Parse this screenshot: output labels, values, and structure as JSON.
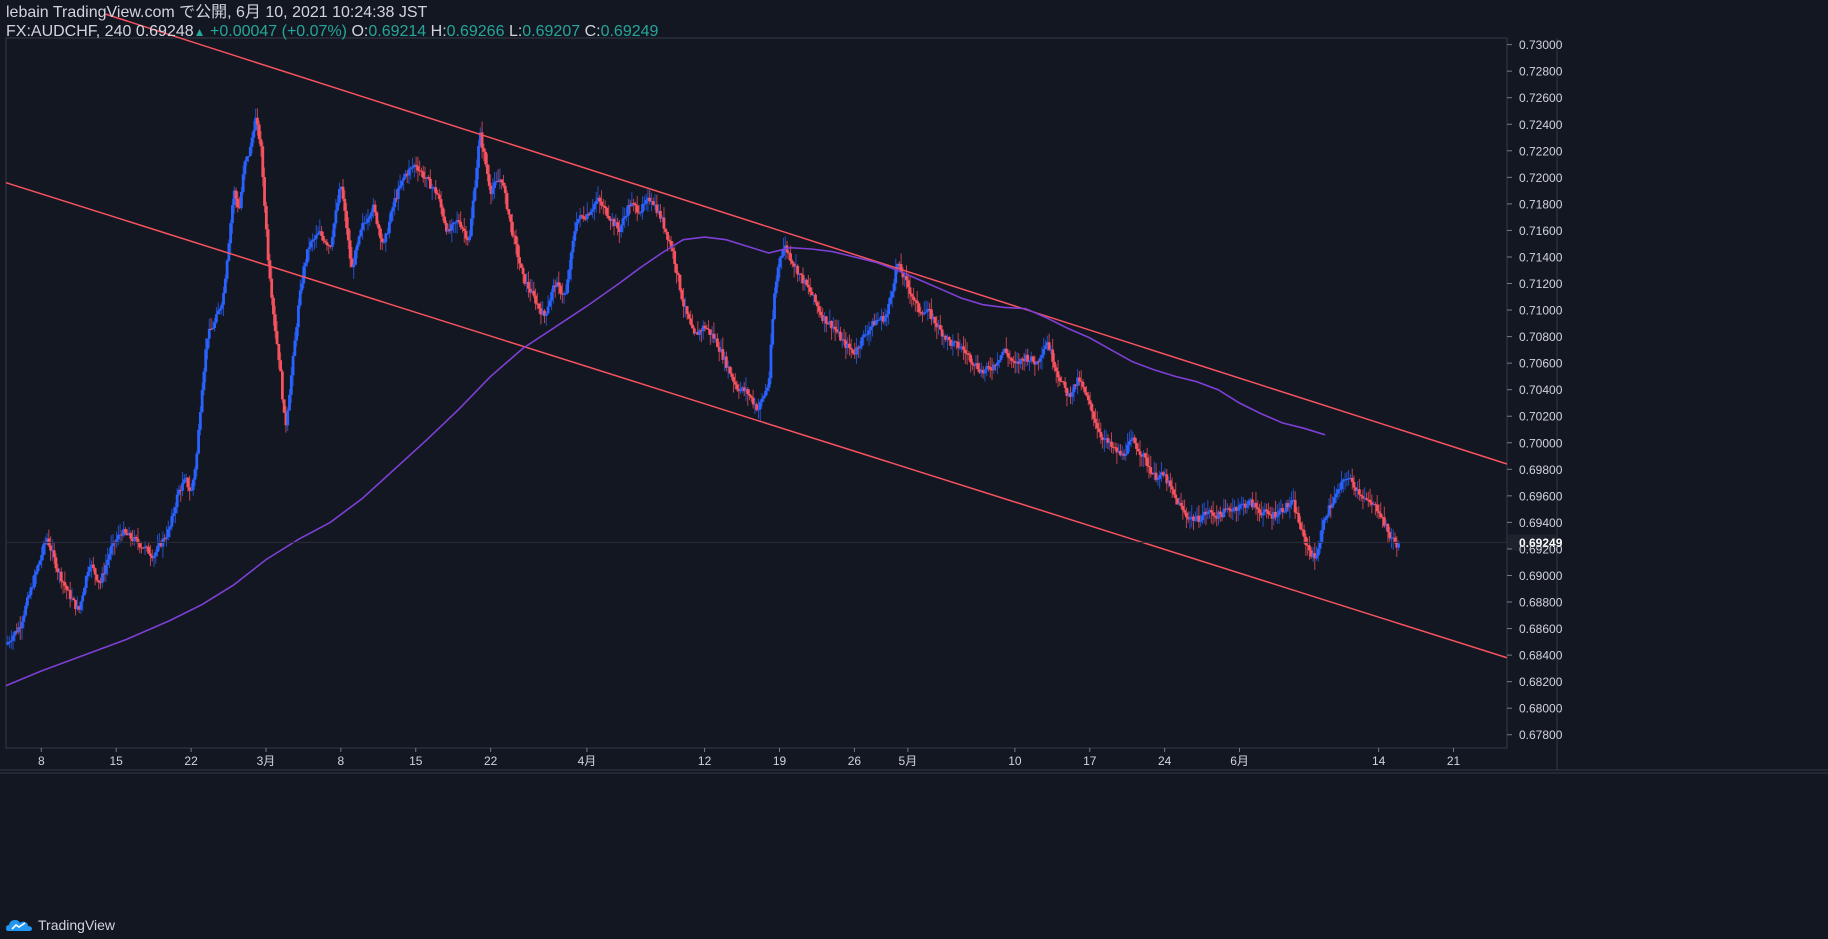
{
  "header": {
    "line1": "lebain TradingView.com で公開, 6月 10, 2021 10:24:38 JST",
    "symbol_prefix": "FX:AUDCHF, 240 0.69248",
    "arrow": "▲",
    "change": "+0.00047 (+0.07%)",
    "o_label": "O:",
    "o_value": "0.69214",
    "h_label": "H:",
    "h_value": "0.69266",
    "l_label": "L:",
    "l_value": "0.69207",
    "c_label": "C:",
    "c_value": "0.69249"
  },
  "footer": {
    "brand": "TradingView"
  },
  "chart_data": {
    "type": "candlestick",
    "symbol": "FX:AUDCHF",
    "interval": "240",
    "ylim": [
      0.677,
      0.7305
    ],
    "y_ticks": [
      0.678,
      0.68,
      0.682,
      0.684,
      0.686,
      0.688,
      0.69,
      0.692,
      0.694,
      0.696,
      0.698,
      0.7,
      0.702,
      0.704,
      0.706,
      0.708,
      0.71,
      0.712,
      0.714,
      0.716,
      0.718,
      0.72,
      0.722,
      0.724,
      0.726,
      0.728,
      0.73
    ],
    "y_tick_labels": [
      "0.67800",
      "0.68000",
      "0.68200",
      "0.68400",
      "0.68600",
      "0.68800",
      "0.69000",
      "0.69200",
      "0.69400",
      "0.69600",
      "0.69800",
      "0.70000",
      "0.70200",
      "0.70400",
      "0.70600",
      "0.70800",
      "0.71000",
      "0.71200",
      "0.71400",
      "0.71600",
      "0.71800",
      "0.72000",
      "0.72200",
      "0.72400",
      "0.72600",
      "0.72800",
      "0.73000"
    ],
    "last_price_label": "0.69249",
    "last_price": 0.69249,
    "x_tick_labels": [
      "8",
      "15",
      "22",
      "3月",
      "8",
      "15",
      "22",
      "4月",
      "12",
      "19",
      "26",
      "5月",
      "10",
      "17",
      "24",
      "6月",
      "14",
      "21"
    ],
    "x_tick_days": [
      0,
      7,
      14,
      21,
      28,
      35,
      42,
      51,
      62,
      69,
      76,
      81,
      91,
      98,
      105,
      112,
      125,
      132
    ],
    "x_range_days": [
      -3.3,
      137
    ],
    "price_path": [
      [
        -3.3,
        0.6848
      ],
      [
        -2,
        0.6862
      ],
      [
        0,
        0.6915
      ],
      [
        0.5,
        0.6929
      ],
      [
        1.5,
        0.6905
      ],
      [
        2.5,
        0.6887
      ],
      [
        3.5,
        0.6873
      ],
      [
        4.5,
        0.691
      ],
      [
        5.5,
        0.6894
      ],
      [
        6.5,
        0.692
      ],
      [
        7.5,
        0.6933
      ],
      [
        9,
        0.6925
      ],
      [
        10.5,
        0.6915
      ],
      [
        12,
        0.6935
      ],
      [
        12.8,
        0.6963
      ],
      [
        13.5,
        0.6972
      ],
      [
        14,
        0.6962
      ],
      [
        14.5,
        0.6988
      ],
      [
        15,
        0.704
      ],
      [
        15.5,
        0.708
      ],
      [
        16.2,
        0.709
      ],
      [
        17,
        0.711
      ],
      [
        17.5,
        0.715
      ],
      [
        18,
        0.719
      ],
      [
        18.5,
        0.7175
      ],
      [
        19,
        0.721
      ],
      [
        19.5,
        0.722
      ],
      [
        20,
        0.7245
      ],
      [
        20.5,
        0.7225
      ],
      [
        21.2,
        0.714
      ],
      [
        21.8,
        0.709
      ],
      [
        22.3,
        0.7058
      ],
      [
        22.8,
        0.701
      ],
      [
        23.5,
        0.706
      ],
      [
        24,
        0.71
      ],
      [
        24.5,
        0.713
      ],
      [
        25,
        0.7148
      ],
      [
        26,
        0.7158
      ],
      [
        27,
        0.7148
      ],
      [
        28,
        0.7195
      ],
      [
        28.5,
        0.7165
      ],
      [
        29,
        0.713
      ],
      [
        30,
        0.7163
      ],
      [
        31,
        0.7178
      ],
      [
        32,
        0.7148
      ],
      [
        33,
        0.7182
      ],
      [
        34,
        0.7202
      ],
      [
        35,
        0.721
      ],
      [
        36,
        0.7198
      ],
      [
        37,
        0.7188
      ],
      [
        38,
        0.7158
      ],
      [
        39,
        0.7168
      ],
      [
        40,
        0.7152
      ],
      [
        41,
        0.7233
      ],
      [
        42,
        0.719
      ],
      [
        43,
        0.72
      ],
      [
        44,
        0.716
      ],
      [
        45,
        0.7125
      ],
      [
        46,
        0.711
      ],
      [
        47,
        0.7095
      ],
      [
        48,
        0.712
      ],
      [
        49,
        0.711
      ],
      [
        50,
        0.7168
      ],
      [
        51,
        0.7172
      ],
      [
        52,
        0.7183
      ],
      [
        53,
        0.7172
      ],
      [
        54,
        0.716
      ],
      [
        55,
        0.718
      ],
      [
        56,
        0.7175
      ],
      [
        57,
        0.7185
      ],
      [
        58,
        0.7168
      ],
      [
        59,
        0.7145
      ],
      [
        60,
        0.7105
      ],
      [
        61,
        0.708
      ],
      [
        62,
        0.7088
      ],
      [
        63,
        0.7078
      ],
      [
        64,
        0.706
      ],
      [
        65,
        0.7042
      ],
      [
        66,
        0.7038
      ],
      [
        67,
        0.7025
      ],
      [
        68,
        0.7045
      ],
      [
        68.5,
        0.711
      ],
      [
        69,
        0.714
      ],
      [
        69.5,
        0.7148
      ],
      [
        70,
        0.714
      ],
      [
        71,
        0.7125
      ],
      [
        72,
        0.7112
      ],
      [
        73,
        0.7095
      ],
      [
        74,
        0.7088
      ],
      [
        75,
        0.7075
      ],
      [
        76,
        0.7068
      ],
      [
        77,
        0.7082
      ],
      [
        78,
        0.7092
      ],
      [
        79,
        0.7095
      ],
      [
        80,
        0.7135
      ],
      [
        81,
        0.7118
      ],
      [
        82,
        0.71
      ],
      [
        83,
        0.7098
      ],
      [
        84,
        0.7085
      ],
      [
        85,
        0.7075
      ],
      [
        86,
        0.7072
      ],
      [
        87,
        0.7062
      ],
      [
        88,
        0.7053
      ],
      [
        89,
        0.7058
      ],
      [
        90,
        0.707
      ],
      [
        91,
        0.7058
      ],
      [
        92,
        0.7065
      ],
      [
        93,
        0.706
      ],
      [
        94,
        0.7077
      ],
      [
        95,
        0.7052
      ],
      [
        96,
        0.7035
      ],
      [
        97,
        0.7048
      ],
      [
        98,
        0.7028
      ],
      [
        99,
        0.7006
      ],
      [
        100,
        0.6997
      ],
      [
        101,
        0.699
      ],
      [
        102,
        0.7002
      ],
      [
        103,
        0.699
      ],
      [
        104,
        0.6975
      ],
      [
        105,
        0.6975
      ],
      [
        106,
        0.6958
      ],
      [
        107,
        0.6945
      ],
      [
        108,
        0.6942
      ],
      [
        109,
        0.6948
      ],
      [
        110,
        0.6945
      ],
      [
        111,
        0.695
      ],
      [
        112,
        0.6952
      ],
      [
        113,
        0.6955
      ],
      [
        114,
        0.6948
      ],
      [
        115,
        0.6945
      ],
      [
        116,
        0.695
      ],
      [
        117,
        0.6955
      ],
      [
        118,
        0.6928
      ],
      [
        119,
        0.6912
      ],
      [
        119.5,
        0.6925
      ],
      [
        120,
        0.6945
      ],
      [
        121,
        0.696
      ],
      [
        122,
        0.6975
      ],
      [
        123,
        0.6965
      ],
      [
        124,
        0.6955
      ],
      [
        125,
        0.695
      ],
      [
        126,
        0.693
      ],
      [
        127,
        0.6921
      ]
    ],
    "moving_average": {
      "color": "#7e3fd4",
      "points": [
        [
          -3.3,
          0.6817
        ],
        [
          0,
          0.6828
        ],
        [
          4,
          0.684
        ],
        [
          8,
          0.6852
        ],
        [
          12,
          0.6866
        ],
        [
          15,
          0.6878
        ],
        [
          18,
          0.6893
        ],
        [
          21,
          0.6912
        ],
        [
          24,
          0.6927
        ],
        [
          27,
          0.694
        ],
        [
          30,
          0.6958
        ],
        [
          33,
          0.698
        ],
        [
          36,
          0.7002
        ],
        [
          39,
          0.7025
        ],
        [
          42,
          0.705
        ],
        [
          45,
          0.7071
        ],
        [
          48,
          0.7087
        ],
        [
          51,
          0.7103
        ],
        [
          54,
          0.712
        ],
        [
          56,
          0.7132
        ],
        [
          58,
          0.7143
        ],
        [
          60,
          0.7153
        ],
        [
          62,
          0.7155
        ],
        [
          64,
          0.7153
        ],
        [
          66,
          0.7148
        ],
        [
          68,
          0.7143
        ],
        [
          70,
          0.7147
        ],
        [
          72,
          0.7146
        ],
        [
          74,
          0.7144
        ],
        [
          76,
          0.714
        ],
        [
          78,
          0.7136
        ],
        [
          80,
          0.713
        ],
        [
          82,
          0.7123
        ],
        [
          84,
          0.7116
        ],
        [
          86,
          0.7109
        ],
        [
          88,
          0.7104
        ],
        [
          90,
          0.7102
        ],
        [
          92,
          0.7101
        ],
        [
          94,
          0.7094
        ],
        [
          96,
          0.7086
        ],
        [
          98,
          0.7079
        ],
        [
          100,
          0.707
        ],
        [
          102,
          0.7061
        ],
        [
          104,
          0.7055
        ],
        [
          106,
          0.705
        ],
        [
          108,
          0.7046
        ],
        [
          110,
          0.704
        ],
        [
          112,
          0.703
        ],
        [
          114,
          0.7022
        ],
        [
          116,
          0.7015
        ],
        [
          118,
          0.7011
        ],
        [
          120,
          0.7006
        ]
      ]
    },
    "trend_lines": {
      "color": "#f7525f",
      "upper": [
        [
          6.0,
          0.7323
        ],
        [
          137,
          0.6984
        ]
      ],
      "lower": [
        [
          -3.3,
          0.7196
        ],
        [
          137,
          0.6838
        ]
      ]
    },
    "colors": {
      "background": "#131722",
      "up": "#2962ff",
      "down": "#f7525f",
      "axis_text": "#d1d4dc",
      "border": "#363a45",
      "positive_text": "#26a69a"
    }
  }
}
